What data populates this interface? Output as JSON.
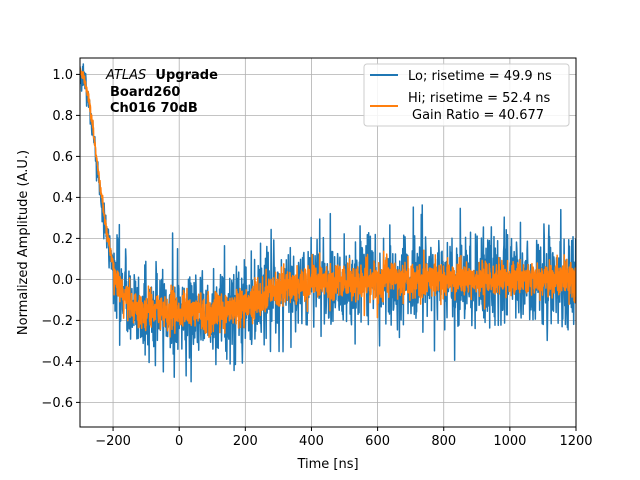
{
  "chart_data": {
    "type": "line",
    "title": "",
    "xlabel": "Time [ns]",
    "ylabel": "Normalized Amplitude (A.U.)",
    "xlim": [
      -300,
      1200
    ],
    "ylim": [
      -0.72,
      1.08
    ],
    "grid": true,
    "xticks": [
      -200,
      0,
      200,
      400,
      600,
      800,
      1000,
      1200
    ],
    "xtick_labels": [
      "−200",
      "0",
      "200",
      "400",
      "600",
      "800",
      "1000",
      "1200"
    ],
    "yticks": [
      -0.6,
      -0.4,
      -0.2,
      0.0,
      0.2,
      0.4,
      0.6,
      0.8,
      1.0
    ],
    "ytick_labels": [
      "−0.6",
      "−0.4",
      "−0.2",
      "0.0",
      "0.2",
      "0.4",
      "0.6",
      "0.8",
      "1.0"
    ],
    "legend_position": "top-right",
    "annotation": {
      "experiment": "ATLAS",
      "word": "Upgrade",
      "board": "Board260",
      "channel": "Ch016 70dB"
    },
    "series": [
      {
        "name": "Lo; risetime = 49.9 ns",
        "color": "#1f77b4",
        "noise_level": 0.12,
        "x": [
          -290,
          -280,
          -270,
          -260,
          -250,
          -240,
          -230,
          -220,
          -210,
          -200,
          -190,
          -180,
          -170,
          -160,
          -150,
          -140,
          -130,
          -120,
          -110,
          -100,
          -80,
          -60,
          -40,
          -20,
          0,
          20,
          40,
          60,
          80,
          100,
          120,
          140,
          160,
          180,
          200,
          220,
          240,
          260,
          280,
          300,
          320,
          340,
          360,
          380,
          400,
          440,
          480,
          520,
          560,
          600,
          650,
          700,
          750,
          800,
          850,
          900,
          950,
          1000,
          1050,
          1100,
          1150,
          1200
        ],
        "y": [
          1.0,
          0.92,
          0.82,
          0.7,
          0.57,
          0.44,
          0.32,
          0.22,
          0.13,
          0.06,
          0.0,
          -0.04,
          -0.08,
          -0.1,
          -0.12,
          -0.13,
          -0.14,
          -0.15,
          -0.15,
          -0.15,
          -0.16,
          -0.16,
          -0.16,
          -0.16,
          -0.16,
          -0.16,
          -0.16,
          -0.16,
          -0.16,
          -0.16,
          -0.16,
          -0.16,
          -0.15,
          -0.14,
          -0.13,
          -0.11,
          -0.09,
          -0.08,
          -0.06,
          -0.05,
          -0.04,
          -0.04,
          -0.03,
          -0.03,
          -0.02,
          -0.02,
          -0.01,
          -0.01,
          0.0,
          0.0,
          0.0,
          0.0,
          0.0,
          0.0,
          0.0,
          0.0,
          0.0,
          0.0,
          0.0,
          0.0,
          0.0,
          0.0
        ]
      },
      {
        "name": "Hi; risetime = 52.4 ns",
        "name_line2": "Gain Ratio = 40.677",
        "color": "#ff7f0e",
        "noise_level": 0.045,
        "x": [
          -290,
          -280,
          -270,
          -260,
          -250,
          -240,
          -230,
          -220,
          -210,
          -200,
          -190,
          -180,
          -170,
          -160,
          -150,
          -140,
          -130,
          -120,
          -110,
          -100,
          -80,
          -60,
          -40,
          -20,
          0,
          20,
          40,
          60,
          80,
          100,
          120,
          140,
          160,
          180,
          200,
          220,
          240,
          260,
          280,
          300,
          320,
          340,
          360,
          380,
          400,
          440,
          480,
          520,
          560,
          600,
          650,
          700,
          750,
          800,
          850,
          900,
          950,
          1000,
          1050,
          1100,
          1150,
          1200
        ],
        "y": [
          1.0,
          0.93,
          0.84,
          0.73,
          0.6,
          0.47,
          0.35,
          0.24,
          0.15,
          0.07,
          0.01,
          -0.04,
          -0.08,
          -0.1,
          -0.12,
          -0.13,
          -0.14,
          -0.15,
          -0.15,
          -0.15,
          -0.15,
          -0.16,
          -0.16,
          -0.16,
          -0.16,
          -0.16,
          -0.16,
          -0.16,
          -0.16,
          -0.16,
          -0.16,
          -0.16,
          -0.15,
          -0.14,
          -0.12,
          -0.11,
          -0.09,
          -0.07,
          -0.06,
          -0.05,
          -0.04,
          -0.03,
          -0.03,
          -0.02,
          -0.02,
          -0.02,
          -0.01,
          -0.01,
          0.0,
          0.0,
          0.0,
          0.0,
          0.0,
          0.0,
          0.0,
          0.0,
          0.0,
          0.0,
          0.0,
          0.0,
          0.0,
          0.0
        ]
      }
    ]
  }
}
